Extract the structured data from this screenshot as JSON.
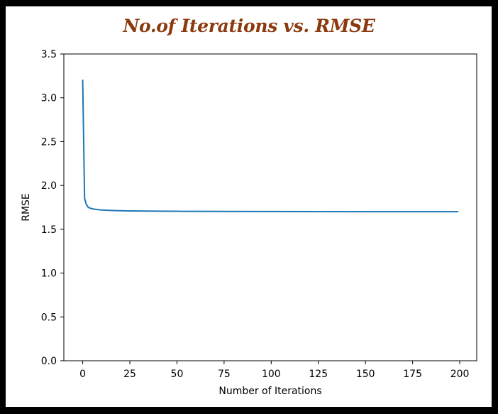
{
  "chart_data": {
    "type": "line",
    "title": "No.of Iterations vs. RMSE",
    "xlabel": "Number of Iterations",
    "ylabel": "RMSE",
    "xlim": [
      -10,
      209
    ],
    "ylim": [
      0.0,
      3.5
    ],
    "x_ticks": [
      0,
      25,
      50,
      75,
      100,
      125,
      150,
      175,
      200
    ],
    "x_tick_labels": [
      "0",
      "25",
      "50",
      "75",
      "100",
      "125",
      "150",
      "175",
      "200"
    ],
    "y_ticks": [
      0.0,
      0.5,
      1.0,
      1.5,
      2.0,
      2.5,
      3.0,
      3.5
    ],
    "y_tick_labels": [
      "0.0",
      "0.5",
      "1.0",
      "1.5",
      "2.0",
      "2.5",
      "3.0",
      "3.5"
    ],
    "grid": false,
    "line_color": "#1f77b4",
    "title_color": "#8B3A0E",
    "series": [
      {
        "x": [
          0,
          1,
          2,
          3,
          4,
          5,
          6,
          8,
          10,
          12,
          15,
          20,
          25,
          30,
          40,
          50,
          60,
          75,
          100,
          125,
          150,
          175,
          199
        ],
        "values": [
          3.2,
          1.85,
          1.78,
          1.75,
          1.74,
          1.735,
          1.73,
          1.725,
          1.72,
          1.718,
          1.715,
          1.712,
          1.71,
          1.708,
          1.706,
          1.705,
          1.704,
          1.703,
          1.702,
          1.701,
          1.7,
          1.7,
          1.7
        ]
      }
    ]
  }
}
